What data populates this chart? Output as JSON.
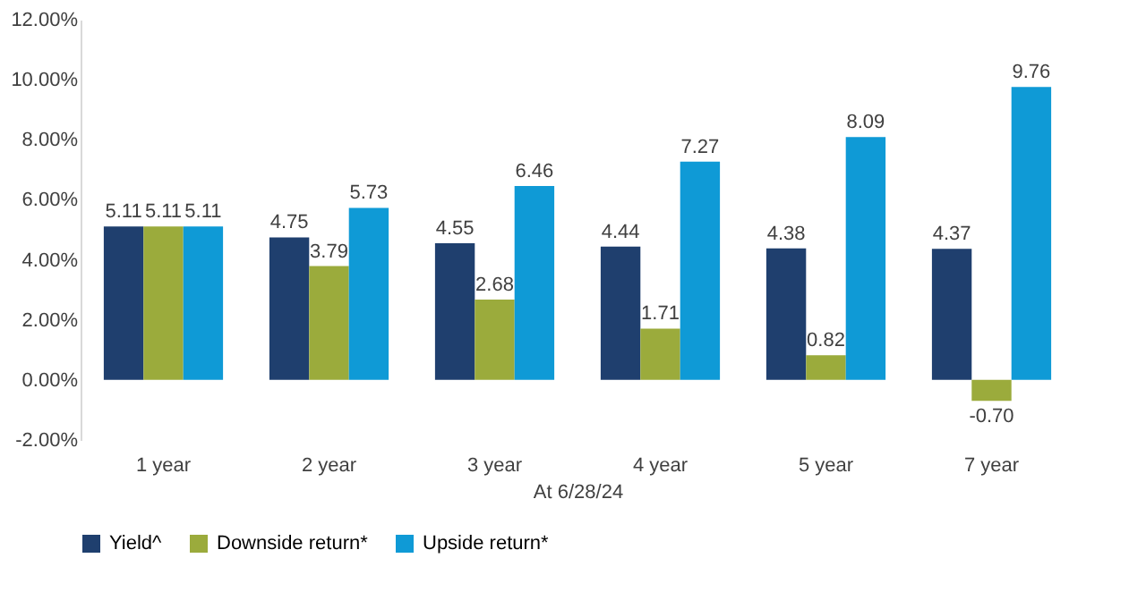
{
  "chart_data": {
    "type": "bar",
    "xlabel": "At 6/28/24",
    "categories": [
      "1 year",
      "2 year",
      "3 year",
      "4 year",
      "5 year",
      "7 year"
    ],
    "series": [
      {
        "name": "Yield^",
        "color": "#1f3f6e",
        "values": [
          5.11,
          4.75,
          4.55,
          4.44,
          4.38,
          4.37
        ]
      },
      {
        "name": "Downside return*",
        "color": "#9bab3c",
        "values": [
          5.11,
          3.79,
          2.68,
          1.71,
          0.82,
          -0.7
        ]
      },
      {
        "name": "Upside return*",
        "color": "#0f9ad6",
        "values": [
          5.11,
          5.73,
          6.46,
          7.27,
          8.09,
          9.76
        ]
      }
    ],
    "ylim": [
      -2,
      12
    ],
    "yticks": [
      {
        "value": -2,
        "label": "-2.00%"
      },
      {
        "value": 0,
        "label": "0.00%"
      },
      {
        "value": 2,
        "label": "2.00%"
      },
      {
        "value": 4,
        "label": "4.00%"
      },
      {
        "value": 6,
        "label": "6.00%"
      },
      {
        "value": 8,
        "label": "8.00%"
      },
      {
        "value": 10,
        "label": "10.00%"
      },
      {
        "value": 12,
        "label": "12.00%"
      }
    ],
    "value_labels": [
      [
        "5.11",
        "4.75",
        "4.55",
        "4.44",
        "4.38",
        "4.37"
      ],
      [
        "5.11",
        "3.79",
        "2.68",
        "1.71",
        "0.82",
        "-0.70"
      ],
      [
        "5.11",
        "5.73",
        "6.46",
        "7.27",
        "8.09",
        "9.76"
      ]
    ],
    "grid": false,
    "legend": "bottom"
  }
}
